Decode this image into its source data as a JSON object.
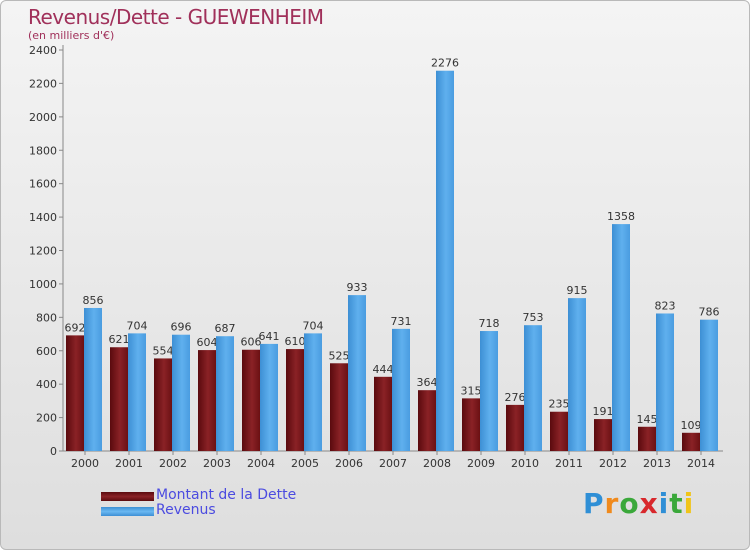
{
  "chart_data": {
    "type": "bar",
    "title": "Revenus/Dette - GUEWENHEIM",
    "subtitle": "(en milliers d'€)",
    "categories": [
      "2000",
      "2001",
      "2002",
      "2003",
      "2004",
      "2005",
      "2006",
      "2007",
      "2008",
      "2009",
      "2010",
      "2011",
      "2012",
      "2013",
      "2014"
    ],
    "series": [
      {
        "name": "Montant de la Dette",
        "color": "#7a1518",
        "values": [
          692,
          621,
          554,
          604,
          606,
          610,
          525,
          444,
          364,
          315,
          276,
          235,
          191,
          145,
          109
        ]
      },
      {
        "name": "Revenus",
        "color": "#4ea3e6",
        "values": [
          856,
          704,
          696,
          687,
          641,
          704,
          933,
          731,
          2276,
          718,
          753,
          915,
          1358,
          823,
          786
        ]
      }
    ],
    "ylim": [
      0,
      2400
    ],
    "yticks": [
      0,
      200,
      400,
      600,
      800,
      1000,
      1200,
      1400,
      1600,
      1800,
      2000,
      2200,
      2400
    ],
    "grid": false,
    "legend_position": "bottom-left"
  },
  "logo": {
    "letters": [
      "P",
      "r",
      "o",
      "x",
      "i",
      "t",
      "i"
    ],
    "colors": [
      "#2f8fd6",
      "#f08a1c",
      "#3aa83a",
      "#d8282c",
      "#2f8fd6",
      "#3aa83a",
      "#f0c419"
    ]
  }
}
